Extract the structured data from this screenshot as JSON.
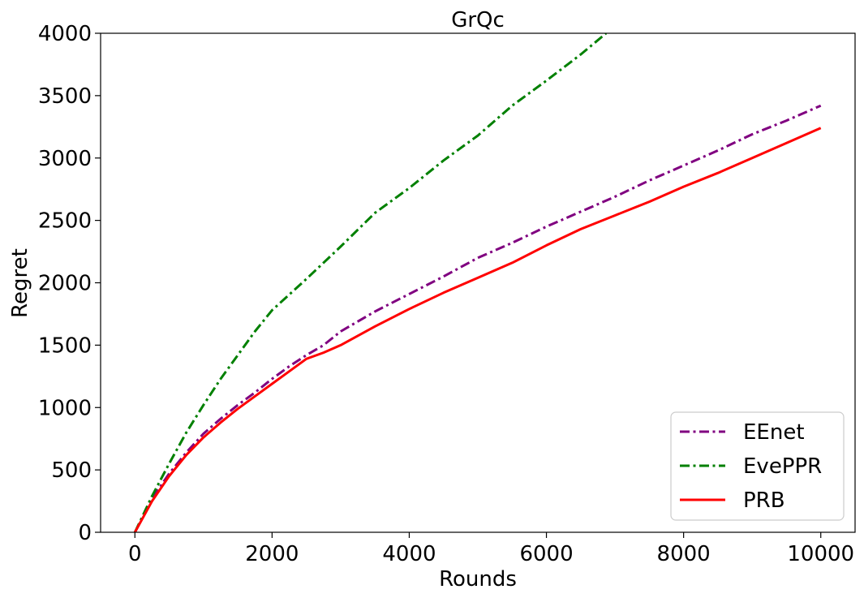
{
  "chart_data": {
    "type": "line",
    "title": "GrQc",
    "xlabel": "Rounds",
    "ylabel": "Regret",
    "xlim": [
      -500,
      10500
    ],
    "ylim": [
      0,
      4000
    ],
    "xticks": [
      0,
      2000,
      4000,
      6000,
      8000,
      10000
    ],
    "yticks": [
      0,
      500,
      1000,
      1500,
      2000,
      2500,
      3000,
      3500,
      4000
    ],
    "grid": false,
    "legend_position": "lower-right",
    "series": [
      {
        "name": "EEnet",
        "color": "#800080",
        "style": "dashdot",
        "x": [
          0,
          250,
          500,
          750,
          1000,
          1250,
          1500,
          1750,
          2000,
          2250,
          2500,
          2750,
          3000,
          3500,
          4000,
          4500,
          5000,
          5500,
          6000,
          6500,
          7000,
          7500,
          8000,
          8500,
          9000,
          9500,
          10000
        ],
        "y": [
          0,
          270,
          470,
          640,
          790,
          910,
          1020,
          1120,
          1230,
          1330,
          1420,
          1500,
          1610,
          1770,
          1910,
          2050,
          2200,
          2320,
          2450,
          2570,
          2690,
          2820,
          2940,
          3060,
          3190,
          3300,
          3420
        ]
      },
      {
        "name": "EvePPR",
        "color": "#008000",
        "style": "dashdot",
        "x": [
          0,
          250,
          500,
          750,
          1000,
          1250,
          1500,
          1750,
          2000,
          2500,
          3000,
          3500,
          4000,
          4500,
          5000,
          5500,
          6000,
          6500,
          6870
        ],
        "y": [
          0,
          290,
          550,
          800,
          1020,
          1230,
          1420,
          1610,
          1780,
          2030,
          2290,
          2560,
          2760,
          2980,
          3180,
          3420,
          3620,
          3830,
          4000
        ]
      },
      {
        "name": "PRB",
        "color": "#ff0000",
        "style": "solid",
        "x": [
          0,
          250,
          500,
          750,
          1000,
          1250,
          1500,
          1750,
          2000,
          2250,
          2500,
          2750,
          3000,
          3500,
          4000,
          4500,
          5000,
          5500,
          6000,
          6500,
          7000,
          7500,
          8000,
          8500,
          9000,
          9500,
          10000
        ],
        "y": [
          0,
          250,
          450,
          620,
          760,
          880,
          990,
          1090,
          1190,
          1290,
          1390,
          1440,
          1500,
          1650,
          1790,
          1920,
          2040,
          2160,
          2300,
          2430,
          2540,
          2650,
          2770,
          2880,
          3000,
          3120,
          3240
        ]
      }
    ]
  }
}
